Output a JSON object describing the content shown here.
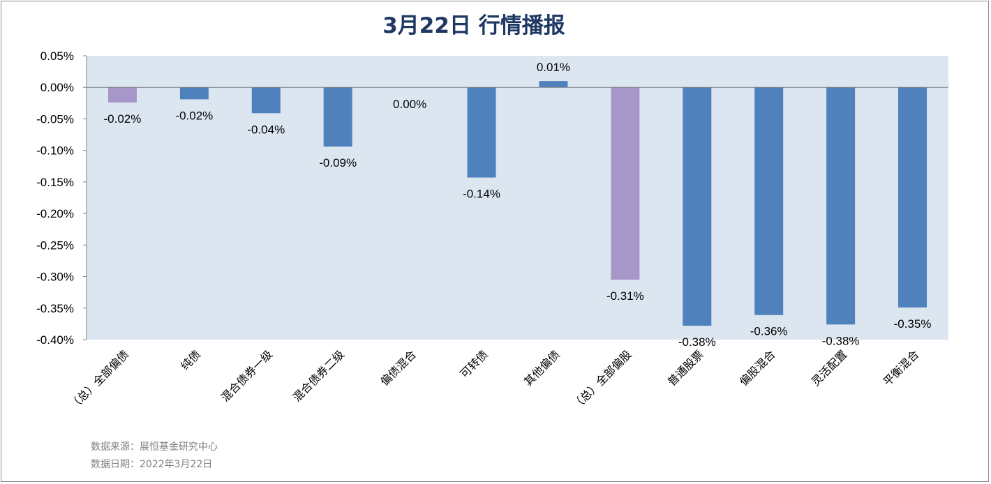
{
  "chart_data": {
    "type": "bar",
    "title": "3月22日  行情播报",
    "categories": [
      "（总）全部偏债",
      "纯债",
      "混合债券一级",
      "混合债券二级",
      "偏债混合",
      "可转债",
      "其他偏债",
      "（总）全部偏股",
      "普通股票",
      "偏股混合",
      "灵活配置",
      "平衡混合"
    ],
    "values": [
      -0.024,
      -0.019,
      -0.041,
      -0.094,
      0.0,
      -0.143,
      0.01,
      -0.305,
      -0.378,
      -0.361,
      -0.376,
      -0.349
    ],
    "value_labels": [
      "-0.02%",
      "-0.02%",
      "-0.04%",
      "-0.09%",
      "0.00%",
      "-0.14%",
      "0.01%",
      "-0.31%",
      "-0.38%",
      "-0.36%",
      "-0.38%",
      "-0.35%"
    ],
    "bar_colors": [
      "#a797c8",
      "#4f81bd",
      "#4f81bd",
      "#4f81bd",
      "#4f81bd",
      "#4f81bd",
      "#4f81bd",
      "#a797c8",
      "#4f81bd",
      "#4f81bd",
      "#4f81bd",
      "#4f81bd"
    ],
    "y_ticks": [
      0.05,
      0.0,
      -0.05,
      -0.1,
      -0.15,
      -0.2,
      -0.25,
      -0.3,
      -0.35,
      -0.4
    ],
    "y_tick_labels": [
      "0.05%",
      "0.00%",
      "-0.05%",
      "-0.10%",
      "-0.15%",
      "-0.20%",
      "-0.25%",
      "-0.30%",
      "-0.35%",
      "-0.40%"
    ],
    "ylim": [
      -0.4,
      0.05
    ],
    "ylabel": "",
    "xlabel": "",
    "grid": false,
    "legend": "none",
    "plot_background": "#dce6f1",
    "axis_color": "#808080"
  },
  "footer": {
    "source": "数据来源：展恒基金研究中心",
    "date": "数据日期：2022年3月22日"
  },
  "colors": {
    "title": "#1f3864",
    "source_text": "#7f7f7f"
  }
}
